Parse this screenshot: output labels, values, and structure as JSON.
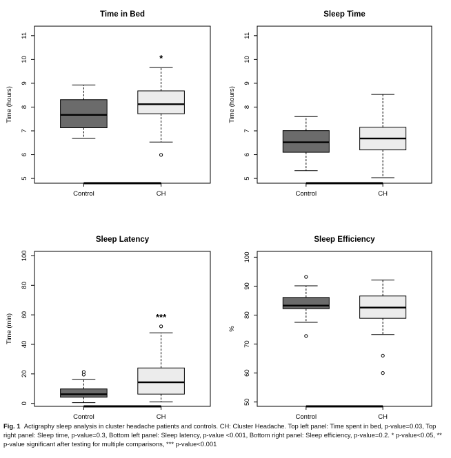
{
  "chart_data": [
    {
      "type": "boxplot",
      "title": "Time in Bed",
      "ylabel": "Time (hours)",
      "ylim": [
        4.8,
        11.4
      ],
      "yticks": [
        5,
        6,
        7,
        8,
        9,
        10,
        11
      ],
      "categories": [
        "Control",
        "CH"
      ],
      "boxes": [
        {
          "category": "Control",
          "fill": "#6b6b6b",
          "whisker_low": 6.68,
          "q1": 7.13,
          "median": 7.67,
          "q3": 8.31,
          "whisker_high": 8.93,
          "outliers": []
        },
        {
          "category": "CH",
          "fill": "#ececec",
          "whisker_low": 6.53,
          "q1": 7.72,
          "median": 8.12,
          "q3": 8.68,
          "whisker_high": 9.67,
          "outliers": [
            5.99
          ]
        }
      ],
      "annotation": "*"
    },
    {
      "type": "boxplot",
      "title": "Sleep Time",
      "ylabel": "Time (hours)",
      "ylim": [
        4.8,
        11.4
      ],
      "yticks": [
        5,
        6,
        7,
        8,
        9,
        10,
        11
      ],
      "categories": [
        "Control",
        "CH"
      ],
      "boxes": [
        {
          "category": "Control",
          "fill": "#6b6b6b",
          "whisker_low": 5.33,
          "q1": 6.1,
          "median": 6.52,
          "q3": 7.01,
          "whisker_high": 7.6,
          "outliers": []
        },
        {
          "category": "CH",
          "fill": "#ececec",
          "whisker_low": 5.03,
          "q1": 6.2,
          "median": 6.68,
          "q3": 7.15,
          "whisker_high": 8.53,
          "outliers": []
        }
      ],
      "annotation": ""
    },
    {
      "type": "boxplot",
      "title": "Sleep Latency",
      "ylabel": "Time (min)",
      "ylim": [
        -2,
        103
      ],
      "yticks": [
        0,
        20,
        40,
        60,
        80,
        100
      ],
      "categories": [
        "Control",
        "CH"
      ],
      "boxes": [
        {
          "category": "Control",
          "fill": "#6b6b6b",
          "whisker_low": 0.5,
          "q1": 4.2,
          "median": 6.2,
          "q3": 9.8,
          "whisker_high": 16.2,
          "outliers": [
            19.5,
            21.3
          ]
        },
        {
          "category": "CH",
          "fill": "#ececec",
          "whisker_low": 1.0,
          "q1": 6.3,
          "median": 14.3,
          "q3": 24.0,
          "whisker_high": 47.8,
          "outliers": [
            52.2
          ]
        }
      ],
      "annotation": "***"
    },
    {
      "type": "boxplot",
      "title": "Sleep Efficiency",
      "ylabel": "%",
      "ylim": [
        48.5,
        102
      ],
      "yticks": [
        50,
        60,
        70,
        80,
        90,
        100
      ],
      "categories": [
        "Control",
        "CH"
      ],
      "boxes": [
        {
          "category": "Control",
          "fill": "#6b6b6b",
          "whisker_low": 77.5,
          "q1": 82.2,
          "median": 83.3,
          "q3": 86.1,
          "whisker_high": 90.1,
          "outliers": [
            93.2,
            72.8
          ]
        },
        {
          "category": "CH",
          "fill": "#ececec",
          "whisker_low": 73.3,
          "q1": 78.9,
          "median": 82.6,
          "q3": 86.6,
          "whisker_high": 92.1,
          "outliers": [
            66.0,
            60.0
          ]
        }
      ],
      "annotation": ""
    }
  ],
  "caption": {
    "label": "Fig. 1",
    "text": "Actigraphy sleep analysis in cluster headache patients and controls. CH: Cluster Headache. Top left panel: Time spent in bed, p-value=0.03, Top right panel: Sleep time, p-value=0.3, Bottom left panel: Sleep latency, p-value <0.001, Bottom right panel: Sleep efficiency, p-value=0.2. * p-value<0.05, ** p-value significant after testing for multiple comparisons, *** p-value<0.001"
  }
}
